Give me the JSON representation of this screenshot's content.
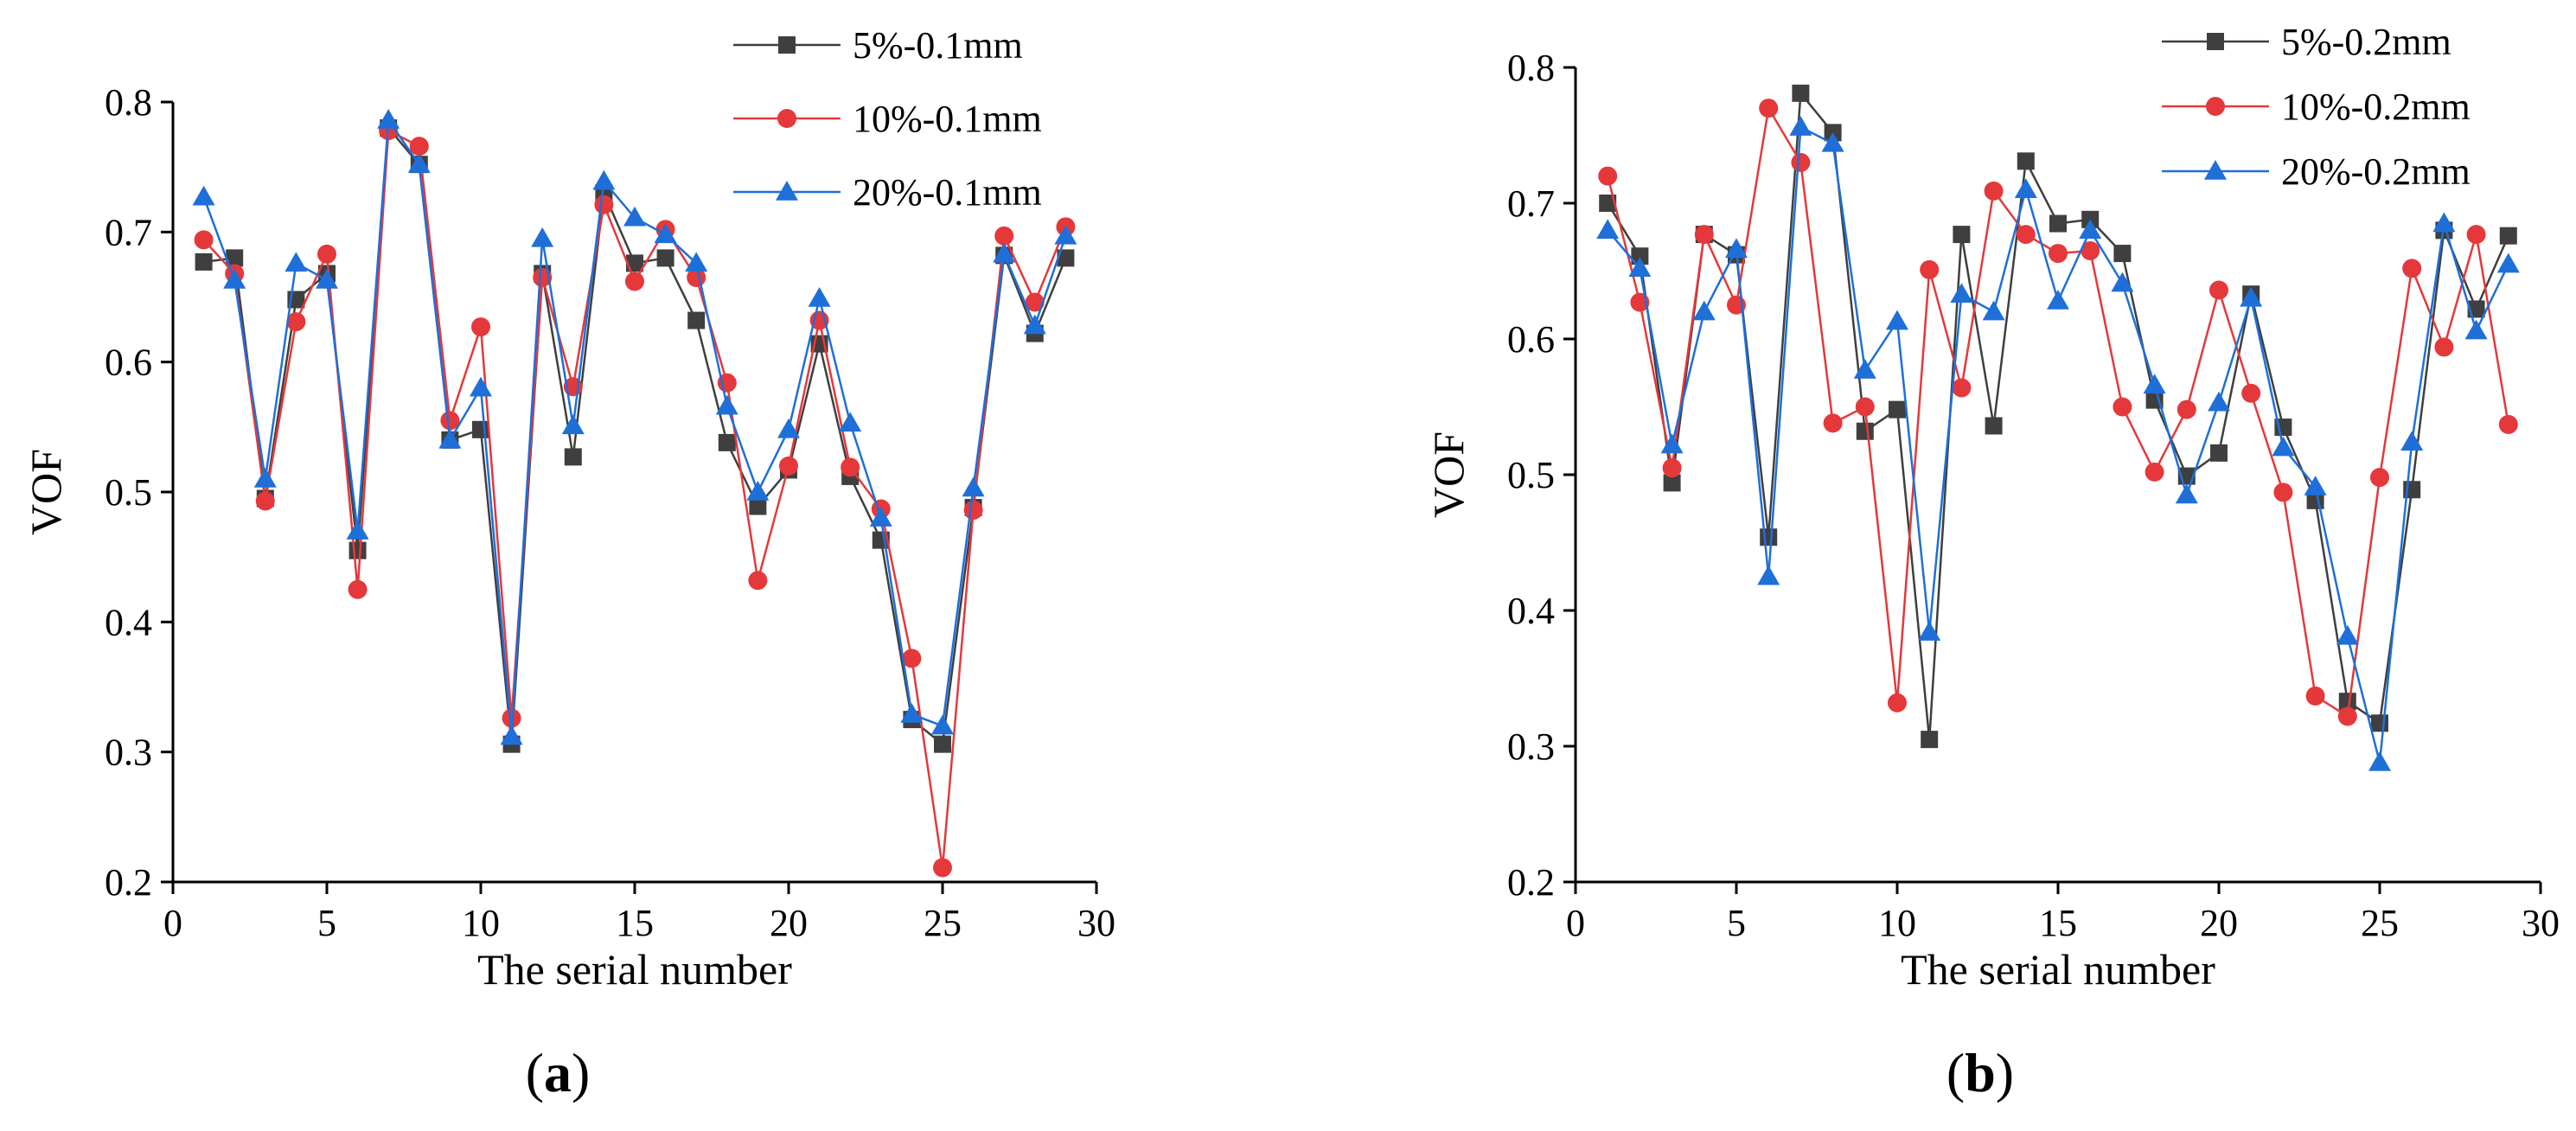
{
  "chart_data": [
    {
      "type": "line",
      "panel_label": "a",
      "xlabel": "The serial number",
      "ylabel": "VOF",
      "xlim": [
        0,
        30
      ],
      "ylim": [
        0.2,
        0.8
      ],
      "xticks": [
        0,
        5,
        10,
        15,
        20,
        25,
        30
      ],
      "xtick_labels": [
        "0",
        "5",
        "10",
        "15",
        "20",
        "25",
        "30"
      ],
      "yticks": [
        0.2,
        0.3,
        0.4,
        0.5,
        0.6,
        0.7,
        0.8
      ],
      "ytick_labels": [
        "0.2",
        "0.3",
        "0.4",
        "0.5",
        "0.6",
        "0.7",
        "0.8"
      ],
      "legend_position": "top-right",
      "x": [
        1,
        2,
        3,
        4,
        5,
        6,
        7,
        8,
        9,
        10,
        11,
        12,
        13,
        14,
        15,
        16,
        17,
        18,
        19,
        20,
        21,
        22,
        23,
        24,
        25,
        26,
        27,
        28,
        29
      ],
      "series": [
        {
          "name": "5%-0.1mm",
          "color": "#3f3f3f",
          "marker": "square",
          "values": [
            0.677,
            0.68,
            0.495,
            0.648,
            0.668,
            0.455,
            0.78,
            0.752,
            0.54,
            0.548,
            0.306,
            0.668,
            0.527,
            0.73,
            0.676,
            0.68,
            0.632,
            0.538,
            0.489,
            0.517,
            0.614,
            0.512,
            0.463,
            0.325,
            0.306,
            0.488,
            0.682,
            0.622,
            0.68
          ]
        },
        {
          "name": "10%-0.1mm",
          "color": "#e5383b",
          "marker": "circle",
          "values": [
            0.694,
            0.668,
            0.493,
            0.631,
            0.683,
            0.425,
            0.778,
            0.766,
            0.555,
            0.627,
            0.326,
            0.665,
            0.581,
            0.721,
            0.662,
            0.702,
            0.665,
            0.584,
            0.432,
            0.52,
            0.632,
            0.519,
            0.487,
            0.372,
            0.211,
            0.486,
            0.697,
            0.646,
            0.704
          ]
        },
        {
          "name": "20%-0.1mm",
          "color": "#1f6fd8",
          "marker": "triangle",
          "values": [
            0.727,
            0.663,
            0.51,
            0.676,
            0.663,
            0.47,
            0.786,
            0.752,
            0.54,
            0.58,
            0.312,
            0.695,
            0.551,
            0.739,
            0.711,
            0.698,
            0.676,
            0.566,
            0.5,
            0.548,
            0.649,
            0.553,
            0.48,
            0.329,
            0.32,
            0.503,
            0.683,
            0.628,
            0.697
          ]
        }
      ]
    },
    {
      "type": "line",
      "panel_label": "b",
      "xlabel": "The serial number",
      "ylabel": "VOF",
      "xlim": [
        0,
        30
      ],
      "ylim": [
        0.2,
        0.8
      ],
      "xticks": [
        0,
        5,
        10,
        15,
        20,
        25,
        30
      ],
      "xtick_labels": [
        "0",
        "5",
        "10",
        "15",
        "20",
        "25",
        "30"
      ],
      "yticks": [
        0.2,
        0.3,
        0.4,
        0.5,
        0.6,
        0.7,
        0.8
      ],
      "ytick_labels": [
        "0.2",
        "0.3",
        "0.4",
        "0.5",
        "0.6",
        "0.7",
        "0.8"
      ],
      "legend_position": "top-right",
      "x": [
        1,
        2,
        3,
        4,
        5,
        6,
        7,
        8,
        9,
        10,
        11,
        12,
        13,
        14,
        15,
        16,
        17,
        18,
        19,
        20,
        21,
        22,
        23,
        24,
        25,
        26,
        27,
        28,
        29
      ],
      "series": [
        {
          "name": "5%-0.2mm",
          "color": "#3f3f3f",
          "marker": "square",
          "values": [
            0.7,
            0.661,
            0.494,
            0.677,
            0.662,
            0.454,
            0.781,
            0.752,
            0.532,
            0.548,
            0.305,
            0.677,
            0.536,
            0.731,
            0.685,
            0.688,
            0.663,
            0.555,
            0.499,
            0.516,
            0.633,
            0.535,
            0.481,
            0.333,
            0.317,
            0.489,
            0.68,
            0.622,
            0.676
          ]
        },
        {
          "name": "10%-0.2mm",
          "color": "#e5383b",
          "marker": "circle",
          "values": [
            0.72,
            0.627,
            0.505,
            0.677,
            0.625,
            0.77,
            0.73,
            0.538,
            0.55,
            0.332,
            0.651,
            0.564,
            0.709,
            0.677,
            0.663,
            0.665,
            0.55,
            0.502,
            0.548,
            0.636,
            0.56,
            0.487,
            0.337,
            0.322,
            0.498,
            0.652,
            0.594,
            0.677,
            0.537
          ]
        },
        {
          "name": "20%-0.2mm",
          "color": "#1f6fd8",
          "marker": "triangle",
          "values": [
            0.68,
            0.652,
            0.522,
            0.62,
            0.666,
            0.425,
            0.756,
            0.744,
            0.577,
            0.613,
            0.384,
            0.633,
            0.62,
            0.71,
            0.628,
            0.68,
            0.641,
            0.566,
            0.485,
            0.553,
            0.63,
            0.52,
            0.491,
            0.381,
            0.288,
            0.524,
            0.685,
            0.606,
            0.655
          ]
        }
      ]
    }
  ]
}
